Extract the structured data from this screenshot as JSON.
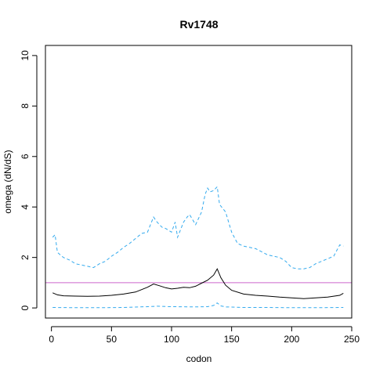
{
  "chart_data": {
    "type": "line",
    "title": "Rv1748",
    "xlabel": "codon",
    "ylabel": "omega (dN/dS)",
    "xlim": [
      -5,
      250
    ],
    "ylim": [
      -0.4,
      10.4
    ],
    "x_ticks": [
      0,
      50,
      100,
      150,
      200,
      250
    ],
    "y_ticks": [
      0,
      2,
      4,
      6,
      8,
      10
    ],
    "reference_line": {
      "y": 1,
      "color": "#cc66cc"
    },
    "series": [
      {
        "style": "solid",
        "color": "#000000",
        "x": [
          1,
          5,
          10,
          20,
          30,
          40,
          50,
          60,
          70,
          80,
          85,
          90,
          95,
          100,
          105,
          110,
          115,
          120,
          125,
          130,
          135,
          138,
          141,
          145,
          150,
          160,
          170,
          180,
          190,
          200,
          210,
          220,
          230,
          240,
          243
        ],
        "y": [
          0.6,
          0.52,
          0.48,
          0.47,
          0.46,
          0.47,
          0.5,
          0.55,
          0.63,
          0.82,
          0.95,
          0.88,
          0.8,
          0.75,
          0.78,
          0.82,
          0.8,
          0.86,
          0.98,
          1.1,
          1.3,
          1.55,
          1.2,
          0.9,
          0.7,
          0.55,
          0.5,
          0.47,
          0.43,
          0.4,
          0.37,
          0.4,
          0.43,
          0.5,
          0.58
        ]
      },
      {
        "style": "dashed",
        "color": "#33aaee",
        "x": [
          1,
          3,
          5,
          10,
          15,
          20,
          25,
          30,
          35,
          40,
          45,
          50,
          55,
          60,
          65,
          70,
          75,
          80,
          85,
          88,
          92,
          95,
          100,
          103,
          105,
          110,
          113,
          115,
          120,
          125,
          128,
          130,
          132,
          135,
          138,
          140,
          145,
          150,
          155,
          160,
          170,
          180,
          190,
          195,
          200,
          205,
          210,
          215,
          220,
          225,
          230,
          235,
          240,
          243
        ],
        "y": [
          2.8,
          2.9,
          2.2,
          2.0,
          1.9,
          1.75,
          1.7,
          1.65,
          1.6,
          1.75,
          1.85,
          2.05,
          2.2,
          2.4,
          2.55,
          2.75,
          2.95,
          3.0,
          3.6,
          3.4,
          3.2,
          3.15,
          3.0,
          3.4,
          2.8,
          3.4,
          3.6,
          3.7,
          3.3,
          3.8,
          4.5,
          4.75,
          4.6,
          4.65,
          4.8,
          4.1,
          3.8,
          3.0,
          2.55,
          2.45,
          2.35,
          2.1,
          2.0,
          1.85,
          1.6,
          1.55,
          1.55,
          1.6,
          1.75,
          1.85,
          1.95,
          2.05,
          2.5,
          2.45
        ]
      },
      {
        "style": "dashed",
        "color": "#33aaee",
        "x": [
          1,
          20,
          40,
          60,
          80,
          88,
          100,
          120,
          130,
          135,
          138,
          141,
          145,
          160,
          180,
          200,
          220,
          243
        ],
        "y": [
          0.02,
          0.01,
          0.01,
          0.02,
          0.05,
          0.07,
          0.05,
          0.04,
          0.05,
          0.1,
          0.2,
          0.08,
          0.04,
          0.02,
          0.02,
          0.01,
          0.01,
          0.02
        ]
      }
    ]
  }
}
